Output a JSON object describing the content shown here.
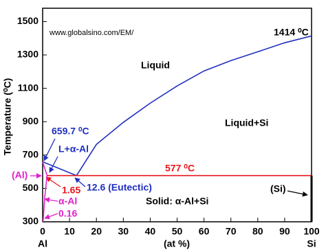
{
  "chart_data": {
    "type": "line",
    "xlim": [
      0,
      100
    ],
    "ylim": [
      300,
      1580
    ],
    "xticks": [
      0,
      10,
      20,
      30,
      40,
      50,
      60,
      70,
      80,
      90,
      100
    ],
    "yticks": [
      300,
      500,
      700,
      900,
      1100,
      1300,
      1500
    ],
    "x_label": "(at %)",
    "y_label": "Temperature (⁰C)",
    "x_end_labels": [
      "Al",
      "Si"
    ],
    "series": [
      {
        "color": "#1f2fbf",
        "x": [
          0,
          12.6
        ],
        "values": [
          659.7,
          577
        ]
      },
      {
        "color": "#1f2fbf",
        "x": [
          12.6,
          20,
          30,
          40,
          50,
          60,
          70,
          80,
          90,
          100
        ],
        "values": [
          577,
          764,
          896,
          1011,
          1114,
          1204,
          1266,
          1319,
          1373,
          1414
        ]
      },
      {
        "color": "#e8141b",
        "x": [
          1.65,
          100
        ],
        "values": [
          577,
          577
        ]
      },
      {
        "color": "#e020c8",
        "x": [
          0,
          1.65
        ],
        "values": [
          659.7,
          577
        ]
      },
      {
        "color": "#e020c8",
        "x": [
          1.65,
          0.8,
          0.16
        ],
        "values": [
          577,
          450,
          300
        ]
      },
      {
        "color": "#000000",
        "x": [
          100,
          100
        ],
        "values": [
          300,
          577
        ]
      }
    ],
    "annotations": [
      {
        "text": "www.globalsino.com/EM/",
        "color": "#000000"
      },
      {
        "text": "1414 ⁰C",
        "color": "#000000"
      },
      {
        "text": "Liquid",
        "color": "#000000"
      },
      {
        "text": "Liquid+Si",
        "color": "#000000"
      },
      {
        "text": "659.7 ⁰C",
        "color": "#1f2fbf"
      },
      {
        "text": "L+α-Al",
        "color": "#1f2fbf"
      },
      {
        "text": "577 ⁰C",
        "color": "#e8141b"
      },
      {
        "text": "(Al)",
        "color": "#e020c8"
      },
      {
        "text": "1.65",
        "color": "#e8141b"
      },
      {
        "text": "12.6 (Eutectic)",
        "color": "#1f2fbf"
      },
      {
        "text": "(Si)",
        "color": "#000000"
      },
      {
        "text": "α-Al",
        "color": "#e020c8"
      },
      {
        "text": "Solid: α-Al+Si",
        "color": "#000000"
      },
      {
        "text": "0.16",
        "color": "#e020c8"
      }
    ]
  }
}
